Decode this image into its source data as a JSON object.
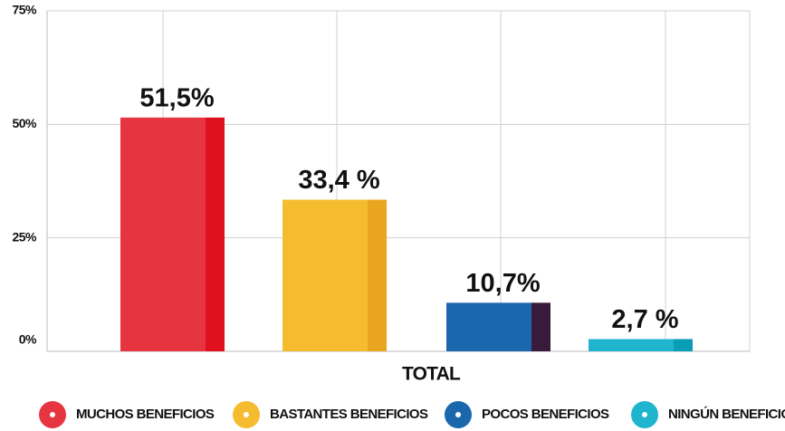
{
  "chart_data": {
    "type": "bar",
    "categories": [
      "MUCHOS BENEFICIOS",
      "BASTANTES BENEFICIOS",
      "POCOS BENEFICIOS",
      "NINGÚN BENEFICIO"
    ],
    "values": [
      51.5,
      33.4,
      10.7,
      2.7
    ],
    "value_labels": [
      "51,5%",
      "33,4 %",
      "10,7%",
      "2,7 %"
    ],
    "colors": [
      "#e63541",
      "#f5bc2f",
      "#1b67ad",
      "#1fb5cf"
    ],
    "shade_colors": [
      "#e0111f",
      "#e9a520",
      "#3a1a3a",
      "#0a9db5"
    ],
    "xlabel": "TOTAL",
    "ylim": [
      0,
      75
    ],
    "yticks": [
      {
        "value": 0,
        "label": "0%"
      },
      {
        "value": 25,
        "label": "25%"
      },
      {
        "value": 50,
        "label": "50%"
      },
      {
        "value": 75,
        "label": "75%"
      }
    ],
    "grid": true
  }
}
